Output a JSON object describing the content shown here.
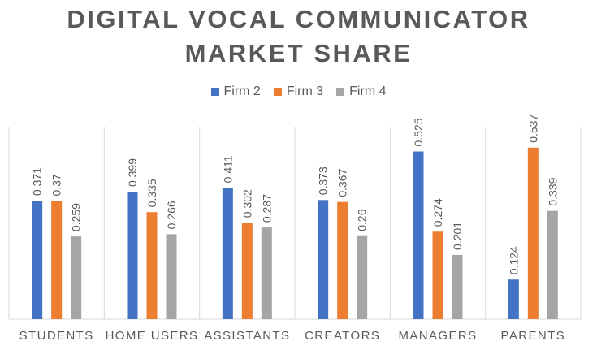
{
  "chart_data": {
    "type": "bar",
    "title_lines": [
      "DIGITAL VOCAL COMMUNICATOR",
      "MARKET SHARE"
    ],
    "categories": [
      "STUDENTS",
      "HOME USERS",
      "ASSISTANTS",
      "CREATORS",
      "MANAGERS",
      "PARENTS"
    ],
    "series": [
      {
        "name": "Firm 2",
        "color": "#4472C4",
        "values": [
          0.371,
          0.399,
          0.411,
          0.373,
          0.525,
          0.124
        ]
      },
      {
        "name": "Firm 3",
        "color": "#ED7D31",
        "values": [
          0.37,
          0.335,
          0.302,
          0.367,
          0.274,
          0.537
        ]
      },
      {
        "name": "Firm 4",
        "color": "#A5A5A5",
        "values": [
          0.259,
          0.266,
          0.287,
          0.26,
          0.201,
          0.339
        ]
      }
    ],
    "value_labels": [
      [
        "0.371",
        "0.399",
        "0.411",
        "0.373",
        "0.525",
        "0.124"
      ],
      [
        "0.37",
        "0.335",
        "0.302",
        "0.367",
        "0.274",
        "0.537"
      ],
      [
        "0.259",
        "0.266",
        "0.287",
        "0.26",
        "0.201",
        "0.339"
      ]
    ],
    "ylim": [
      0,
      0.6
    ],
    "grid": "vertical category separators",
    "legend_position": "top-center",
    "data_labels": "rotated above bars"
  }
}
